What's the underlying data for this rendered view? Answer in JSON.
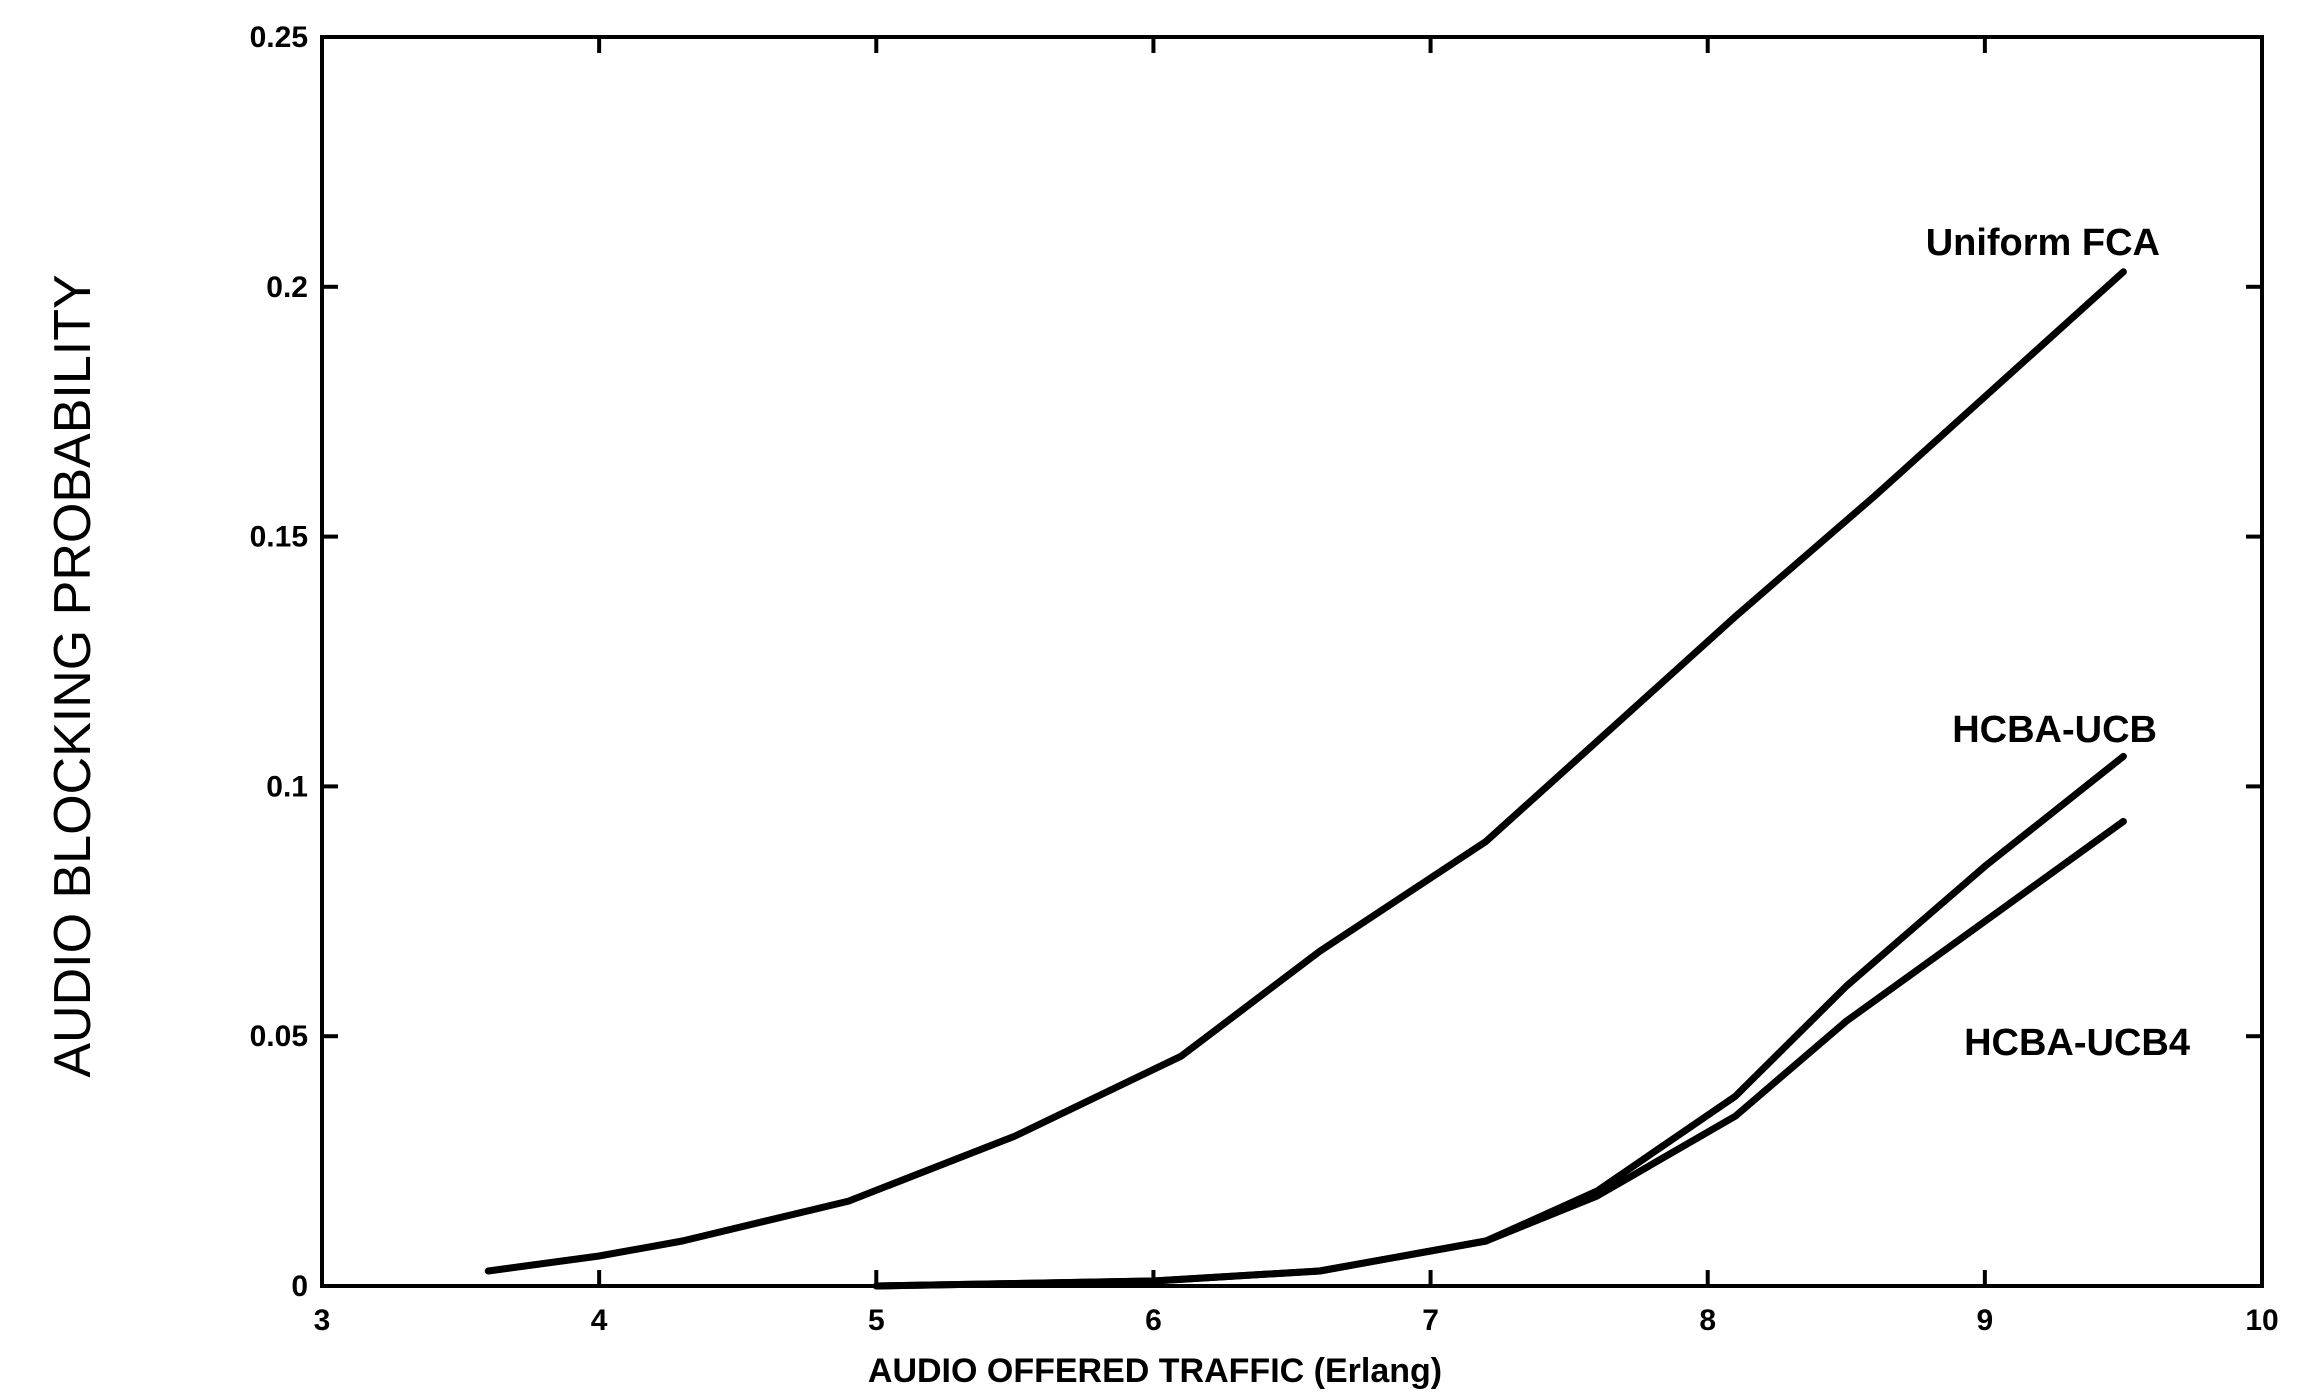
{
  "chart_data": {
    "type": "line",
    "xlabel": "AUDIO OFFERED TRAFFIC (Erlang)",
    "ylabel": "AUDIO BLOCKING PROBABILITY",
    "xlim": [
      3,
      10
    ],
    "ylim": [
      0,
      0.25
    ],
    "xticks": [
      3,
      4,
      5,
      6,
      7,
      8,
      9,
      10
    ],
    "yticks": [
      0,
      0.05,
      0.1,
      0.15,
      0.2,
      0.25
    ],
    "xtick_labels": [
      "3",
      "4",
      "5",
      "6",
      "7",
      "8",
      "9",
      "10"
    ],
    "ytick_labels": [
      "0",
      "0.05",
      "0.1",
      "0.15",
      "0.2",
      "0.25"
    ],
    "grid": false,
    "series": [
      {
        "name": "Uniform FCA",
        "x": [
          3.6,
          4.0,
          4.3,
          4.9,
          5.5,
          6.1,
          6.6,
          7.2,
          7.7,
          8.1,
          8.6,
          9.0,
          9.5
        ],
        "y": [
          0.003,
          0.006,
          0.009,
          0.017,
          0.03,
          0.046,
          0.067,
          0.089,
          0.114,
          0.134,
          0.158,
          0.178,
          0.203
        ]
      },
      {
        "name": "HCBA-UCB",
        "x": [
          5.0,
          5.5,
          6.0,
          6.6,
          7.2,
          7.6,
          8.1,
          8.5,
          9.0,
          9.5
        ],
        "y": [
          0.0,
          0.0005,
          0.001,
          0.003,
          0.009,
          0.019,
          0.038,
          0.06,
          0.084,
          0.106
        ]
      },
      {
        "name": "HCBA-UCB4",
        "x": [
          5.0,
          5.5,
          6.0,
          6.6,
          7.2,
          7.6,
          8.1,
          8.5,
          9.0,
          9.5
        ],
        "y": [
          0.0,
          0.0005,
          0.001,
          0.003,
          0.009,
          0.018,
          0.034,
          0.053,
          0.073,
          0.093
        ]
      }
    ]
  }
}
